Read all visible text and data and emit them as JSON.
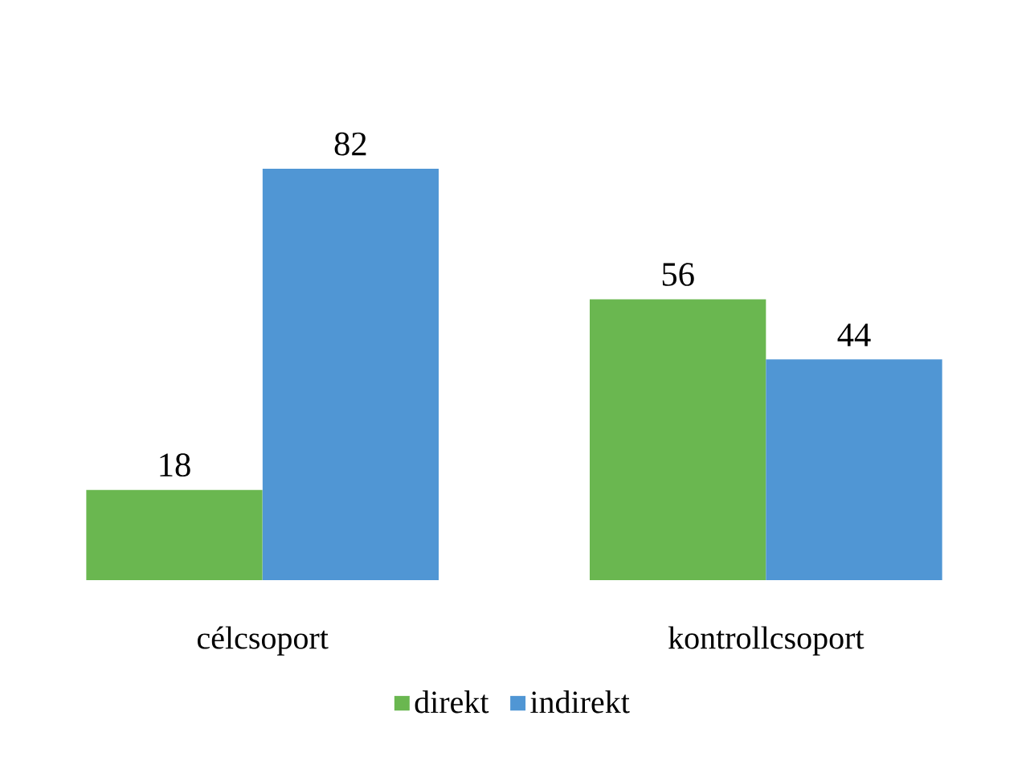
{
  "chart_data": {
    "type": "bar",
    "categories": [
      "célcsoport",
      "kontrollcsoport"
    ],
    "series": [
      {
        "name": "direkt",
        "color": "#6ab750",
        "values": [
          18,
          56
        ]
      },
      {
        "name": "indirekt",
        "color": "#5096d4",
        "values": [
          82,
          44
        ]
      }
    ],
    "data_labels": true,
    "legend": "bottom"
  }
}
